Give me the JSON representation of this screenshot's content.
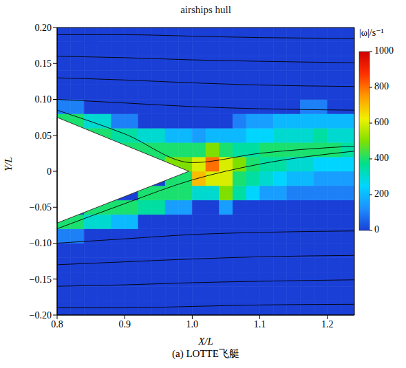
{
  "chart_data": {
    "type": "heatmap",
    "title": "airships hull",
    "caption": "(a) LOTTE飞艇",
    "x_label": "X/L",
    "y_label": "Y/L",
    "grid": false,
    "xlim": [
      0.8,
      1.24
    ],
    "xticks": [
      0.8,
      0.9,
      {
        "value": 1,
        "label": "1.0"
      },
      1.1,
      1.2
    ],
    "ylim": [
      -0.2,
      0.2
    ],
    "yticks": [
      {
        "value": -0.2,
        "label": "−0.20"
      },
      {
        "value": -0.15,
        "label": "−0.15"
      },
      {
        "value": -0.1,
        "label": "−0.10"
      },
      {
        "value": -0.05,
        "label": "−0.05"
      },
      0,
      0.05,
      {
        "value": 0.1,
        "label": "0.10"
      },
      0.15,
      {
        "value": 0.2,
        "label": "0.20"
      }
    ],
    "colorbar": {
      "label": "|ω|/s⁻¹",
      "range": [
        0,
        1000
      ],
      "ticks": [
        0,
        200,
        400,
        600,
        800,
        1000
      ],
      "colors": [
        "#1a3fd6",
        "#1e90ff",
        "#00d5ff",
        "#00e08a",
        "#7fe000",
        "#f0f000",
        "#ff9a00",
        "#ff3000",
        "#d00000"
      ]
    },
    "vorticity": {
      "x_edges": [
        0.8,
        0.82,
        0.84,
        0.86,
        0.88,
        0.9,
        0.92,
        0.94,
        0.96,
        0.98,
        1.0,
        1.02,
        1.04,
        1.06,
        1.08,
        1.1,
        1.12,
        1.14,
        1.16,
        1.18,
        1.2,
        1.22,
        1.24
      ],
      "y_edges": [
        -0.2,
        -0.18,
        -0.16,
        -0.14,
        -0.12,
        -0.1,
        -0.08,
        -0.06,
        -0.04,
        -0.02,
        0,
        0.02,
        0.04,
        0.06,
        0.08,
        0.1,
        0.12,
        0.14,
        0.16,
        0.18,
        0.2
      ],
      "z": [
        [
          0,
          0,
          0,
          0,
          0,
          0,
          0,
          0,
          0,
          0,
          0,
          0,
          0,
          0,
          0,
          0,
          0,
          0,
          0,
          0,
          0,
          0
        ],
        [
          0,
          0,
          0,
          0,
          0,
          0,
          0,
          0,
          0,
          0,
          0,
          0,
          0,
          0,
          0,
          0,
          0,
          0,
          0,
          0,
          0,
          0
        ],
        [
          0,
          0,
          0,
          0,
          0,
          0,
          0,
          0,
          0,
          0,
          0,
          0,
          0,
          0,
          0,
          0,
          0,
          0,
          0,
          0,
          0,
          0
        ],
        [
          0,
          0,
          0,
          0,
          0,
          0,
          0,
          0,
          0,
          0,
          0,
          0,
          0,
          0,
          0,
          0,
          0,
          0,
          0,
          0,
          0,
          0
        ],
        [
          0,
          0,
          0,
          0,
          0,
          0,
          0,
          0,
          0,
          0,
          0,
          0,
          0,
          0,
          0,
          0,
          0,
          0,
          0,
          0,
          0,
          0
        ],
        [
          100,
          100,
          0,
          0,
          0,
          0,
          0,
          0,
          0,
          0,
          0,
          0,
          0,
          0,
          0,
          0,
          0,
          0,
          0,
          0,
          0,
          0
        ],
        [
          400,
          400,
          300,
          300,
          200,
          200,
          0,
          0,
          0,
          0,
          0,
          0,
          0,
          0,
          0,
          0,
          0,
          0,
          0,
          0,
          0,
          0
        ],
        [
          0,
          0,
          400,
          400,
          400,
          400,
          350,
          350,
          150,
          150,
          0,
          0,
          150,
          0,
          0,
          0,
          0,
          0,
          0,
          0,
          0,
          0
        ],
        [
          0,
          0,
          0,
          0,
          0,
          0,
          400,
          400,
          400,
          400,
          300,
          300,
          500,
          350,
          250,
          150,
          150,
          100,
          100,
          100,
          100,
          100
        ],
        [
          0,
          0,
          0,
          0,
          0,
          0,
          0,
          0,
          400,
          400,
          700,
          600,
          600,
          400,
          350,
          300,
          250,
          200,
          200,
          150,
          150,
          150
        ],
        [
          0,
          0,
          0,
          0,
          0,
          0,
          400,
          400,
          500,
          500,
          600,
          800,
          600,
          500,
          400,
          350,
          350,
          300,
          300,
          250,
          250,
          250
        ],
        [
          0,
          0,
          0,
          0,
          400,
          400,
          400,
          400,
          400,
          400,
          400,
          500,
          400,
          350,
          350,
          400,
          400,
          400,
          400,
          400,
          400,
          350
        ],
        [
          0,
          0,
          400,
          400,
          350,
          350,
          300,
          300,
          200,
          200,
          150,
          200,
          200,
          200,
          250,
          250,
          300,
          300,
          300,
          350,
          300,
          300
        ],
        [
          400,
          400,
          300,
          300,
          100,
          100,
          0,
          0,
          0,
          0,
          0,
          0,
          0,
          100,
          150,
          150,
          200,
          200,
          200,
          200,
          200,
          200
        ],
        [
          100,
          100,
          0,
          0,
          0,
          0,
          0,
          0,
          0,
          0,
          0,
          0,
          0,
          0,
          0,
          0,
          0,
          0,
          100,
          100,
          0,
          0
        ],
        [
          0,
          0,
          0,
          0,
          0,
          0,
          0,
          0,
          0,
          0,
          0,
          0,
          0,
          0,
          0,
          0,
          0,
          0,
          0,
          0,
          0,
          0
        ],
        [
          0,
          0,
          0,
          0,
          0,
          0,
          0,
          0,
          0,
          0,
          0,
          0,
          0,
          0,
          0,
          0,
          0,
          0,
          0,
          0,
          0,
          0
        ],
        [
          0,
          0,
          0,
          0,
          0,
          0,
          0,
          0,
          0,
          0,
          0,
          0,
          0,
          0,
          0,
          0,
          0,
          0,
          0,
          0,
          0,
          0
        ],
        [
          0,
          0,
          0,
          0,
          0,
          0,
          0,
          0,
          0,
          0,
          0,
          0,
          0,
          0,
          0,
          0,
          0,
          0,
          0,
          0,
          0,
          0
        ],
        [
          0,
          0,
          0,
          0,
          0,
          0,
          0,
          0,
          0,
          0,
          0,
          0,
          0,
          0,
          0,
          0,
          0,
          0,
          0,
          0,
          0,
          0
        ]
      ]
    },
    "hull": {
      "color": "#ffffff",
      "x": [
        0.8,
        0.995,
        0.8
      ],
      "y": [
        0.075,
        0,
        -0.072
      ]
    },
    "streamlines": {
      "color": "#000000",
      "x": [
        0.8,
        0.9,
        1.0,
        1.1,
        1.24
      ],
      "y": [
        [
          0.19,
          0.19,
          0.188,
          0.186,
          0.185
        ],
        [
          0.16,
          0.158,
          0.155,
          0.153,
          0.151
        ],
        [
          0.13,
          0.127,
          0.123,
          0.12,
          0.118
        ],
        [
          0.1,
          0.095,
          0.09,
          0.087,
          0.085
        ],
        [
          0.085,
          0.052,
          0.012,
          0.025,
          0.035
        ],
        [
          -0.08,
          -0.045,
          -0.012,
          0.01,
          0.028
        ],
        [
          -0.1,
          -0.094,
          -0.088,
          -0.085,
          -0.083
        ],
        [
          -0.13,
          -0.126,
          -0.122,
          -0.119,
          -0.117
        ],
        [
          -0.16,
          -0.158,
          -0.155,
          -0.153,
          -0.151
        ],
        [
          -0.19,
          -0.19,
          -0.188,
          -0.186,
          -0.185
        ]
      ]
    }
  }
}
